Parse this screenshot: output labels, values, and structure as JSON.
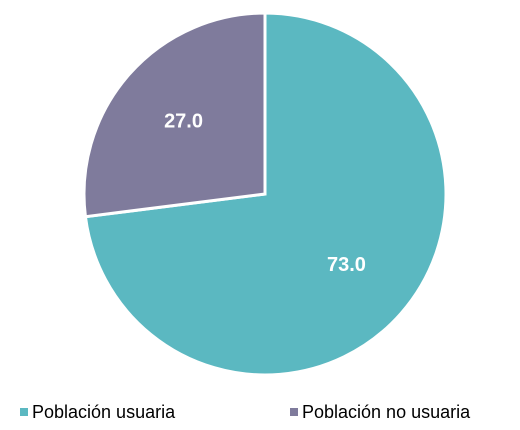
{
  "chart_data": {
    "type": "pie",
    "categories": [
      "Población usuaria",
      "Población no usuaria"
    ],
    "values": [
      73,
      27
    ],
    "value_labels": [
      "73.0",
      "27.0"
    ],
    "colors": [
      "#5bb8c1",
      "#7f7b9c"
    ],
    "legend": "bottom"
  }
}
